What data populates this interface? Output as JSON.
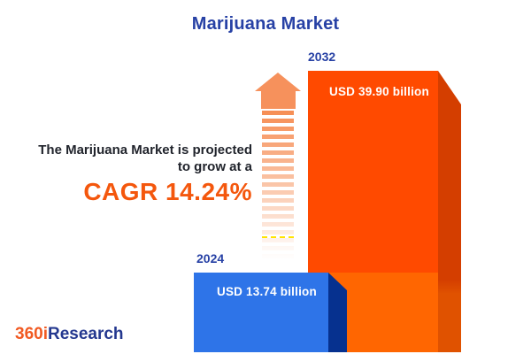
{
  "title": "Marijuana Market",
  "statement": {
    "line1": "The Marijuana Market is projected",
    "line2": "to grow at a",
    "cagr": "CAGR 14.24%"
  },
  "chart_data": {
    "type": "bar",
    "title": "Marijuana Market",
    "categories": [
      "2024",
      "2032"
    ],
    "values": [
      13.74,
      39.9
    ],
    "unit": "USD billion",
    "value_labels": [
      "USD 13.74 billion",
      "USD 39.90 billion"
    ],
    "cagr_percent": 14.24,
    "orientation": "vertical",
    "style": "3d-infographic",
    "bar_colors": [
      "#2E74E8",
      "#FF4A00"
    ],
    "legend": "none",
    "grid": "off"
  },
  "bars": {
    "b2024": {
      "year": "2024",
      "value_label": "USD 13.74 billion",
      "face_color": "#2E74E8",
      "side_color": "#06318F"
    },
    "b2032": {
      "year": "2032",
      "value_label": "USD 39.90 billion",
      "face_color_upper": "#FF4A00",
      "face_color_lower": "#FF6601",
      "side_color_upper": "#D43E00",
      "side_color_lower": "#E05200"
    }
  },
  "arrow": {
    "meaning": "growth-up-arrow",
    "head_color": "#F6915C",
    "dash_color": "#F68C52",
    "accent_line_color": "#FFE400"
  },
  "logo": {
    "prefix": "360i",
    "suffix": "Research",
    "prefix_color": "#F15A22",
    "suffix_color": "#24388F"
  },
  "colors": {
    "background": "#FFFFFF",
    "title_text": "#2741A5",
    "year_label_text": "#2741A5",
    "statement_text": "#21242C",
    "cagr_text": "#F4570D",
    "bar_value_text": "#FFFFFF"
  }
}
